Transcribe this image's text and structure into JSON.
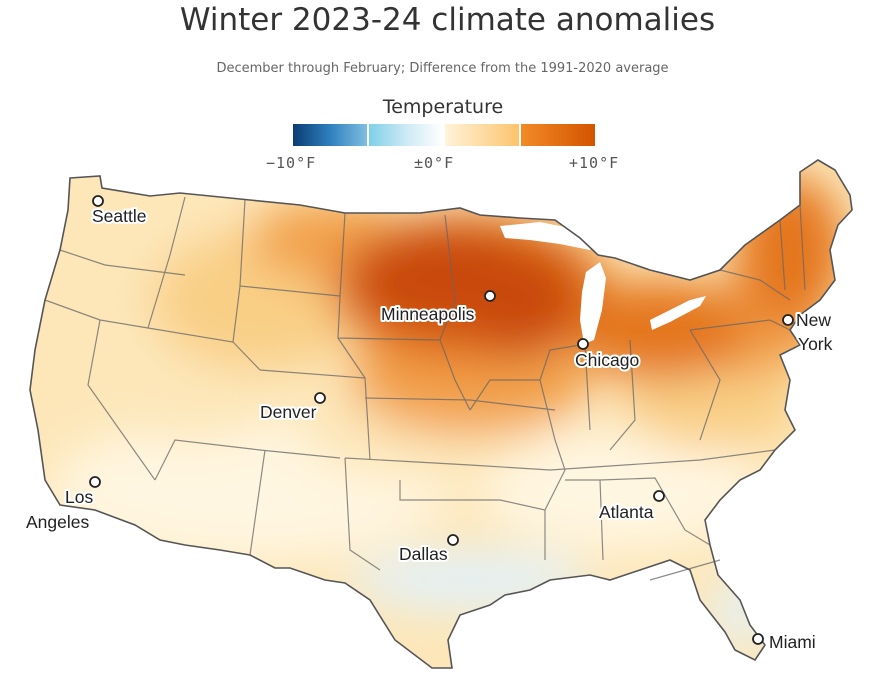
{
  "title": "Winter 2023-24 climate anomalies",
  "subtitle": "December through February; Difference from the 1991-2020 average",
  "legend": {
    "title": "Temperature",
    "ticks": [
      "−10°F",
      "±0°F",
      "+10°F"
    ],
    "colors": [
      "#0b3d73",
      "#2f7fbf",
      "#cde9f5",
      "#fff3da",
      "#fcc46e",
      "#f38a26",
      "#d35400"
    ]
  },
  "cities": [
    {
      "name": "Seattle",
      "lines": [
        "Seattle"
      ]
    },
    {
      "name": "Minneapolis",
      "lines": [
        "Minneapolis"
      ]
    },
    {
      "name": "Chicago",
      "lines": [
        "Chicago"
      ]
    },
    {
      "name": "New York",
      "lines": [
        "New",
        "York"
      ]
    },
    {
      "name": "Denver",
      "lines": [
        "Denver"
      ]
    },
    {
      "name": "Los Angeles",
      "lines": [
        "Los",
        "Angeles"
      ]
    },
    {
      "name": "Atlanta",
      "lines": [
        "Atlanta"
      ]
    },
    {
      "name": "Dallas",
      "lines": [
        "Dallas"
      ]
    },
    {
      "name": "Miami",
      "lines": [
        "Miami"
      ]
    }
  ],
  "anomaly_colors": {
    "strong": "#c94a0c",
    "high": "#e4761d",
    "moderate": "#f2a14c",
    "mild": "#f9cf86",
    "slight": "#fde7b9",
    "neutral": "#fff6e1",
    "cool": "#e3f1f8"
  }
}
